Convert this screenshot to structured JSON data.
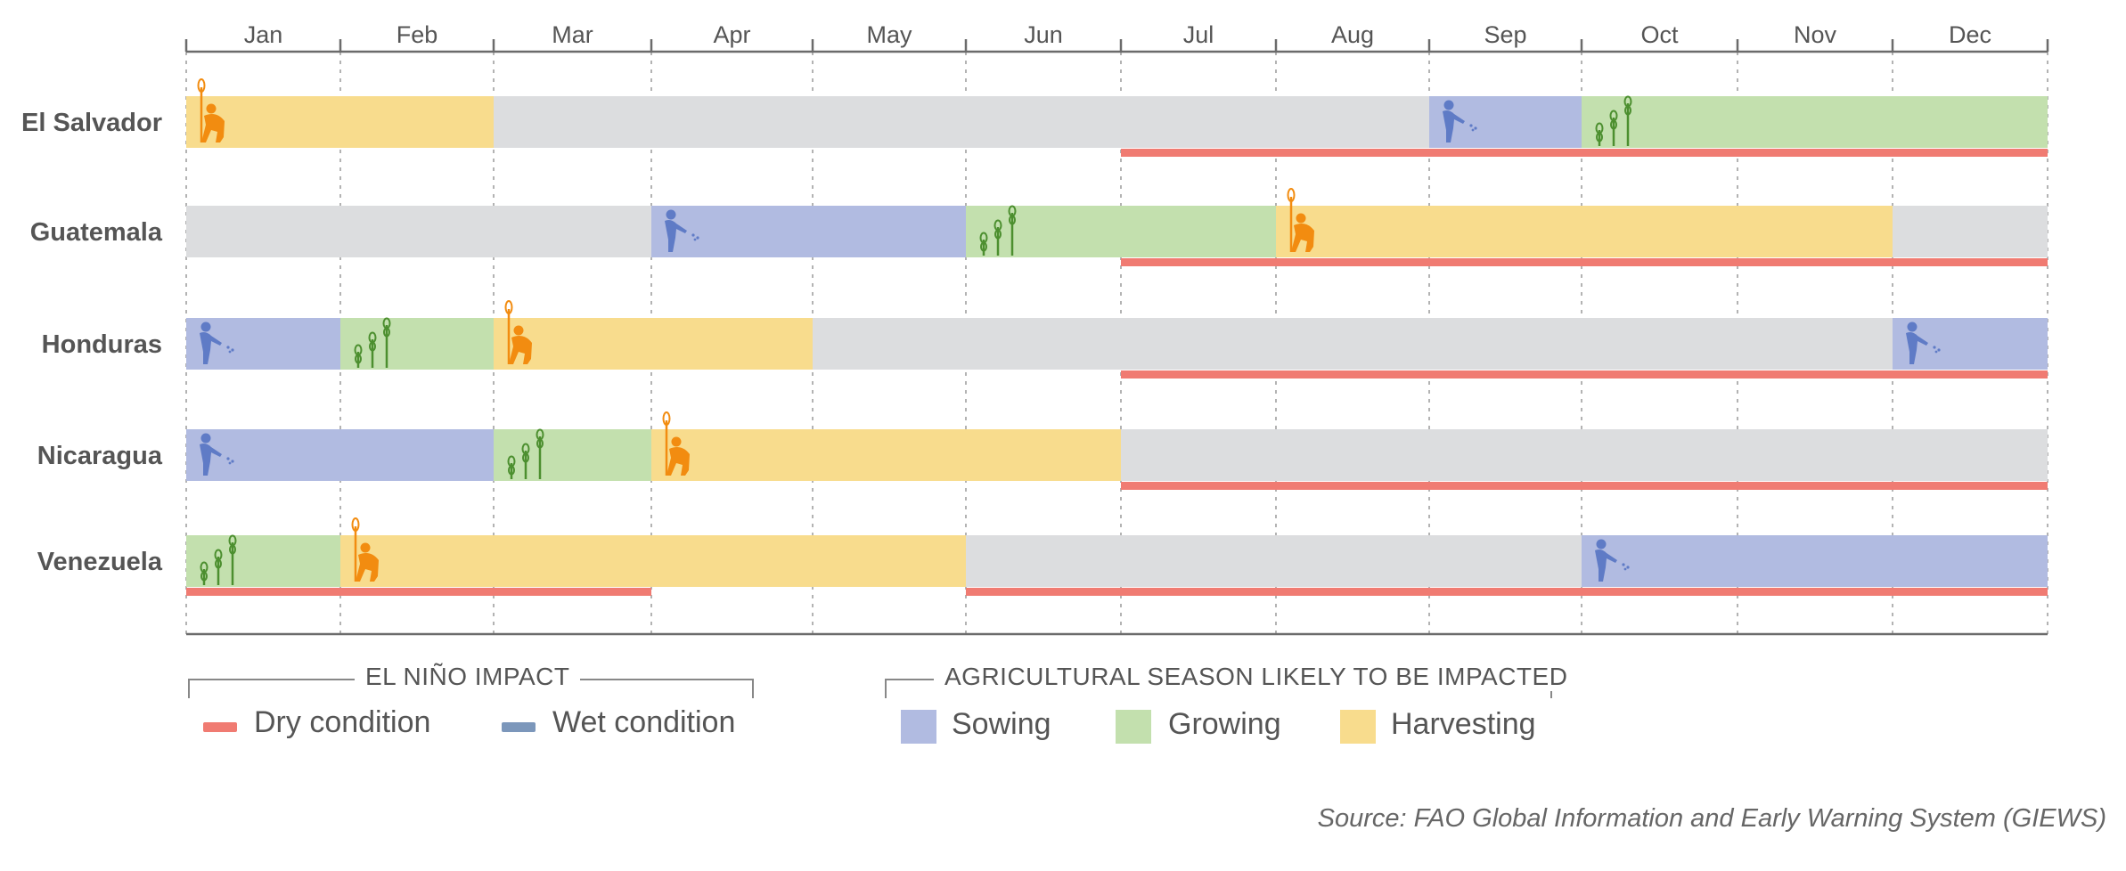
{
  "chart_data": {
    "type": "gantt",
    "months": [
      "Jan",
      "Feb",
      "Mar",
      "Apr",
      "May",
      "Jun",
      "Jul",
      "Aug",
      "Sep",
      "Oct",
      "Nov",
      "Dec"
    ],
    "rows": [
      {
        "country": "El Salvador",
        "segments": [
          {
            "stage": "harvesting",
            "start": 0,
            "end": 2
          },
          {
            "stage": "none",
            "start": 2,
            "end": 8.0
          },
          {
            "stage": "sowing",
            "start": 8.0,
            "end": 9.0
          },
          {
            "stage": "growing",
            "start": 9.0,
            "end": 12
          }
        ],
        "dry": [
          [
            6,
            12
          ]
        ]
      },
      {
        "country": "Guatemala",
        "segments": [
          {
            "stage": "none",
            "start": 0,
            "end": 3
          },
          {
            "stage": "sowing",
            "start": 3,
            "end": 5
          },
          {
            "stage": "growing",
            "start": 5,
            "end": 7
          },
          {
            "stage": "harvesting",
            "start": 7,
            "end": 11
          },
          {
            "stage": "none",
            "start": 11,
            "end": 12
          }
        ],
        "dry": [
          [
            6,
            12
          ]
        ]
      },
      {
        "country": "Honduras",
        "segments": [
          {
            "stage": "sowing",
            "start": 0,
            "end": 1
          },
          {
            "stage": "growing",
            "start": 1,
            "end": 2
          },
          {
            "stage": "harvesting",
            "start": 2,
            "end": 4
          },
          {
            "stage": "none",
            "start": 4,
            "end": 11
          },
          {
            "stage": "sowing",
            "start": 11,
            "end": 12
          }
        ],
        "dry": [
          [
            6,
            12
          ]
        ]
      },
      {
        "country": "Nicaragua",
        "segments": [
          {
            "stage": "sowing",
            "start": 0,
            "end": 2
          },
          {
            "stage": "growing",
            "start": 2,
            "end": 3
          },
          {
            "stage": "harvesting",
            "start": 3,
            "end": 6
          },
          {
            "stage": "none",
            "start": 6,
            "end": 12
          }
        ],
        "dry": [
          [
            6,
            12
          ]
        ]
      },
      {
        "country": "Venezuela",
        "segments": [
          {
            "stage": "growing",
            "start": 0,
            "end": 1
          },
          {
            "stage": "harvesting",
            "start": 1,
            "end": 5
          },
          {
            "stage": "none",
            "start": 5,
            "end": 9
          },
          {
            "stage": "sowing",
            "start": 9,
            "end": 12
          }
        ],
        "dry": [
          [
            0,
            3
          ],
          [
            5,
            12
          ]
        ]
      }
    ],
    "colors": {
      "sowing": "#b1bbe1",
      "growing": "#c3e0ae",
      "harvesting": "#f8dc8d",
      "none": "#dcdddf",
      "dry": "#f07b72",
      "wet": "#7c97bb",
      "sowing_icon": "#5f7bc6",
      "growing_icon": "#4c8f2f",
      "harvesting_icon": "#f28c10"
    }
  },
  "legend": {
    "impact_title": "EL NIÑO IMPACT",
    "dry_label": "Dry condition",
    "wet_label": "Wet condition",
    "season_title": "AGRICULTURAL SEASON LIKELY TO BE IMPACTED",
    "sowing_label": "Sowing",
    "growing_label": "Growing",
    "harvesting_label": "Harvesting"
  },
  "source": "Source: FAO Global Information and Early Warning System (GIEWS)"
}
